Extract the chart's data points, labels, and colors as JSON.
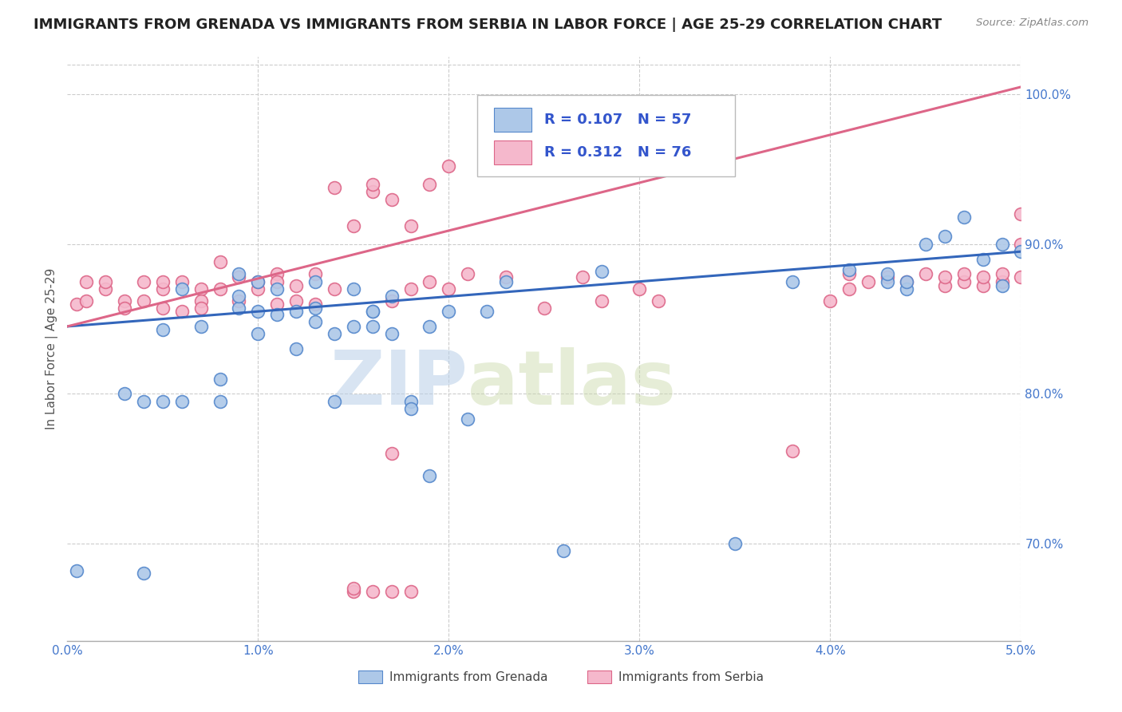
{
  "title": "IMMIGRANTS FROM GRENADA VS IMMIGRANTS FROM SERBIA IN LABOR FORCE | AGE 25-29 CORRELATION CHART",
  "source": "Source: ZipAtlas.com",
  "ylabel": "In Labor Force | Age 25-29",
  "xlim": [
    0.0,
    0.05
  ],
  "ylim": [
    0.635,
    1.025
  ],
  "xticks": [
    0.0,
    0.01,
    0.02,
    0.03,
    0.04,
    0.05
  ],
  "xticklabels": [
    "0.0%",
    "1.0%",
    "2.0%",
    "3.0%",
    "4.0%",
    "5.0%"
  ],
  "yticks": [
    0.7,
    0.8,
    0.9,
    1.0
  ],
  "yticklabels": [
    "70.0%",
    "80.0%",
    "90.0%",
    "100.0%"
  ],
  "grenada_color": "#adc8e8",
  "grenada_edge": "#5588cc",
  "serbia_color": "#f5b8cc",
  "serbia_edge": "#dd6688",
  "line_grenada": "#3366bb",
  "line_serbia": "#dd6688",
  "R_grenada": 0.107,
  "N_grenada": 57,
  "R_serbia": 0.312,
  "N_serbia": 76,
  "legend_R_color": "#3355cc",
  "watermark_zip": "ZIP",
  "watermark_atlas": "atlas",
  "title_fontsize": 13,
  "axis_color": "#4477cc",
  "grid_color": "#cccccc",
  "grenada_line_x0": 0.0,
  "grenada_line_y0": 0.845,
  "grenada_line_x1": 0.05,
  "grenada_line_y1": 0.895,
  "serbia_line_x0": 0.0,
  "serbia_line_y0": 0.845,
  "serbia_line_x1": 0.05,
  "serbia_line_y1": 1.005,
  "grenada_x": [
    0.0005,
    0.003,
    0.004,
    0.004,
    0.005,
    0.005,
    0.006,
    0.006,
    0.007,
    0.008,
    0.008,
    0.009,
    0.009,
    0.009,
    0.01,
    0.01,
    0.01,
    0.011,
    0.011,
    0.012,
    0.012,
    0.013,
    0.013,
    0.013,
    0.014,
    0.014,
    0.015,
    0.015,
    0.016,
    0.016,
    0.016,
    0.017,
    0.017,
    0.018,
    0.018,
    0.019,
    0.019,
    0.02,
    0.021,
    0.022,
    0.023,
    0.026,
    0.028,
    0.035,
    0.038,
    0.041,
    0.043,
    0.043,
    0.044,
    0.044,
    0.045,
    0.046,
    0.047,
    0.048,
    0.049,
    0.049,
    0.05
  ],
  "grenada_y": [
    0.682,
    0.8,
    0.795,
    0.68,
    0.843,
    0.795,
    0.87,
    0.795,
    0.845,
    0.795,
    0.81,
    0.857,
    0.865,
    0.88,
    0.855,
    0.84,
    0.875,
    0.853,
    0.87,
    0.855,
    0.83,
    0.848,
    0.857,
    0.875,
    0.84,
    0.795,
    0.87,
    0.845,
    0.855,
    0.855,
    0.845,
    0.865,
    0.84,
    0.795,
    0.79,
    0.845,
    0.745,
    0.855,
    0.783,
    0.855,
    0.875,
    0.695,
    0.882,
    0.7,
    0.875,
    0.883,
    0.875,
    0.88,
    0.87,
    0.875,
    0.9,
    0.905,
    0.918,
    0.89,
    0.9,
    0.872,
    0.895
  ],
  "serbia_x": [
    0.0005,
    0.001,
    0.001,
    0.002,
    0.002,
    0.003,
    0.003,
    0.004,
    0.004,
    0.005,
    0.005,
    0.005,
    0.006,
    0.006,
    0.007,
    0.007,
    0.007,
    0.008,
    0.008,
    0.009,
    0.009,
    0.01,
    0.01,
    0.011,
    0.011,
    0.011,
    0.012,
    0.012,
    0.013,
    0.013,
    0.014,
    0.014,
    0.015,
    0.016,
    0.016,
    0.017,
    0.017,
    0.018,
    0.018,
    0.019,
    0.019,
    0.02,
    0.02,
    0.021,
    0.022,
    0.023,
    0.025,
    0.027,
    0.028,
    0.03,
    0.031,
    0.038,
    0.04,
    0.041,
    0.041,
    0.042,
    0.043,
    0.044,
    0.045,
    0.046,
    0.046,
    0.047,
    0.047,
    0.048,
    0.048,
    0.049,
    0.049,
    0.05,
    0.05,
    0.05,
    0.015,
    0.015,
    0.016,
    0.017,
    0.017,
    0.018
  ],
  "serbia_y": [
    0.86,
    0.862,
    0.875,
    0.87,
    0.875,
    0.862,
    0.857,
    0.862,
    0.875,
    0.87,
    0.857,
    0.875,
    0.855,
    0.875,
    0.87,
    0.862,
    0.857,
    0.87,
    0.888,
    0.878,
    0.862,
    0.87,
    0.875,
    0.86,
    0.88,
    0.875,
    0.872,
    0.862,
    0.86,
    0.88,
    0.87,
    0.938,
    0.912,
    0.935,
    0.94,
    0.93,
    0.862,
    0.912,
    0.87,
    0.94,
    0.875,
    0.87,
    0.952,
    0.88,
    0.952,
    0.878,
    0.857,
    0.878,
    0.862,
    0.87,
    0.862,
    0.762,
    0.862,
    0.87,
    0.88,
    0.875,
    0.878,
    0.875,
    0.88,
    0.872,
    0.878,
    0.875,
    0.88,
    0.872,
    0.878,
    0.875,
    0.88,
    0.878,
    0.9,
    0.92,
    0.668,
    0.67,
    0.668,
    0.76,
    0.668,
    0.668
  ]
}
